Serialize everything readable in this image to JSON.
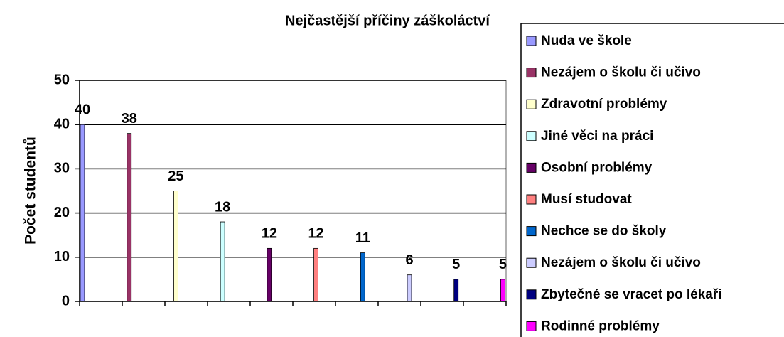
{
  "chart_data": {
    "type": "bar",
    "title": "Nejčastější příčiny záškoláctví",
    "y_label": "Počet studentů",
    "ylim": [
      0,
      50
    ],
    "yticks": [
      0,
      10,
      20,
      30,
      40,
      50
    ],
    "grid": true,
    "legend": "right",
    "series": [
      {
        "name": "Nuda ve škole",
        "color": "#9999ff",
        "values": [
          40
        ]
      },
      {
        "name": "Nezájem o školu či učivo",
        "color": "#993366",
        "values": [
          38
        ]
      },
      {
        "name": "Zdravotní problémy",
        "color": "#ffffcc",
        "values": [
          25
        ]
      },
      {
        "name": "Jiné věci na práci",
        "color": "#ccffff",
        "values": [
          18
        ]
      },
      {
        "name": "Osobní problémy",
        "color": "#660066",
        "values": [
          12
        ]
      },
      {
        "name": "Musí studovat",
        "color": "#ff8080",
        "values": [
          12
        ]
      },
      {
        "name": "Nechce se do školy",
        "color": "#0066cc",
        "values": [
          11
        ]
      },
      {
        "name": "Nezájem o školu či učivo",
        "color": "#ccccff",
        "values": [
          6
        ]
      },
      {
        "name": "Zbytečné se vracet po lékaři",
        "color": "#000080",
        "values": [
          5
        ]
      },
      {
        "name": "Rodinné problémy",
        "color": "#ff00ff",
        "values": [
          5
        ]
      }
    ]
  }
}
